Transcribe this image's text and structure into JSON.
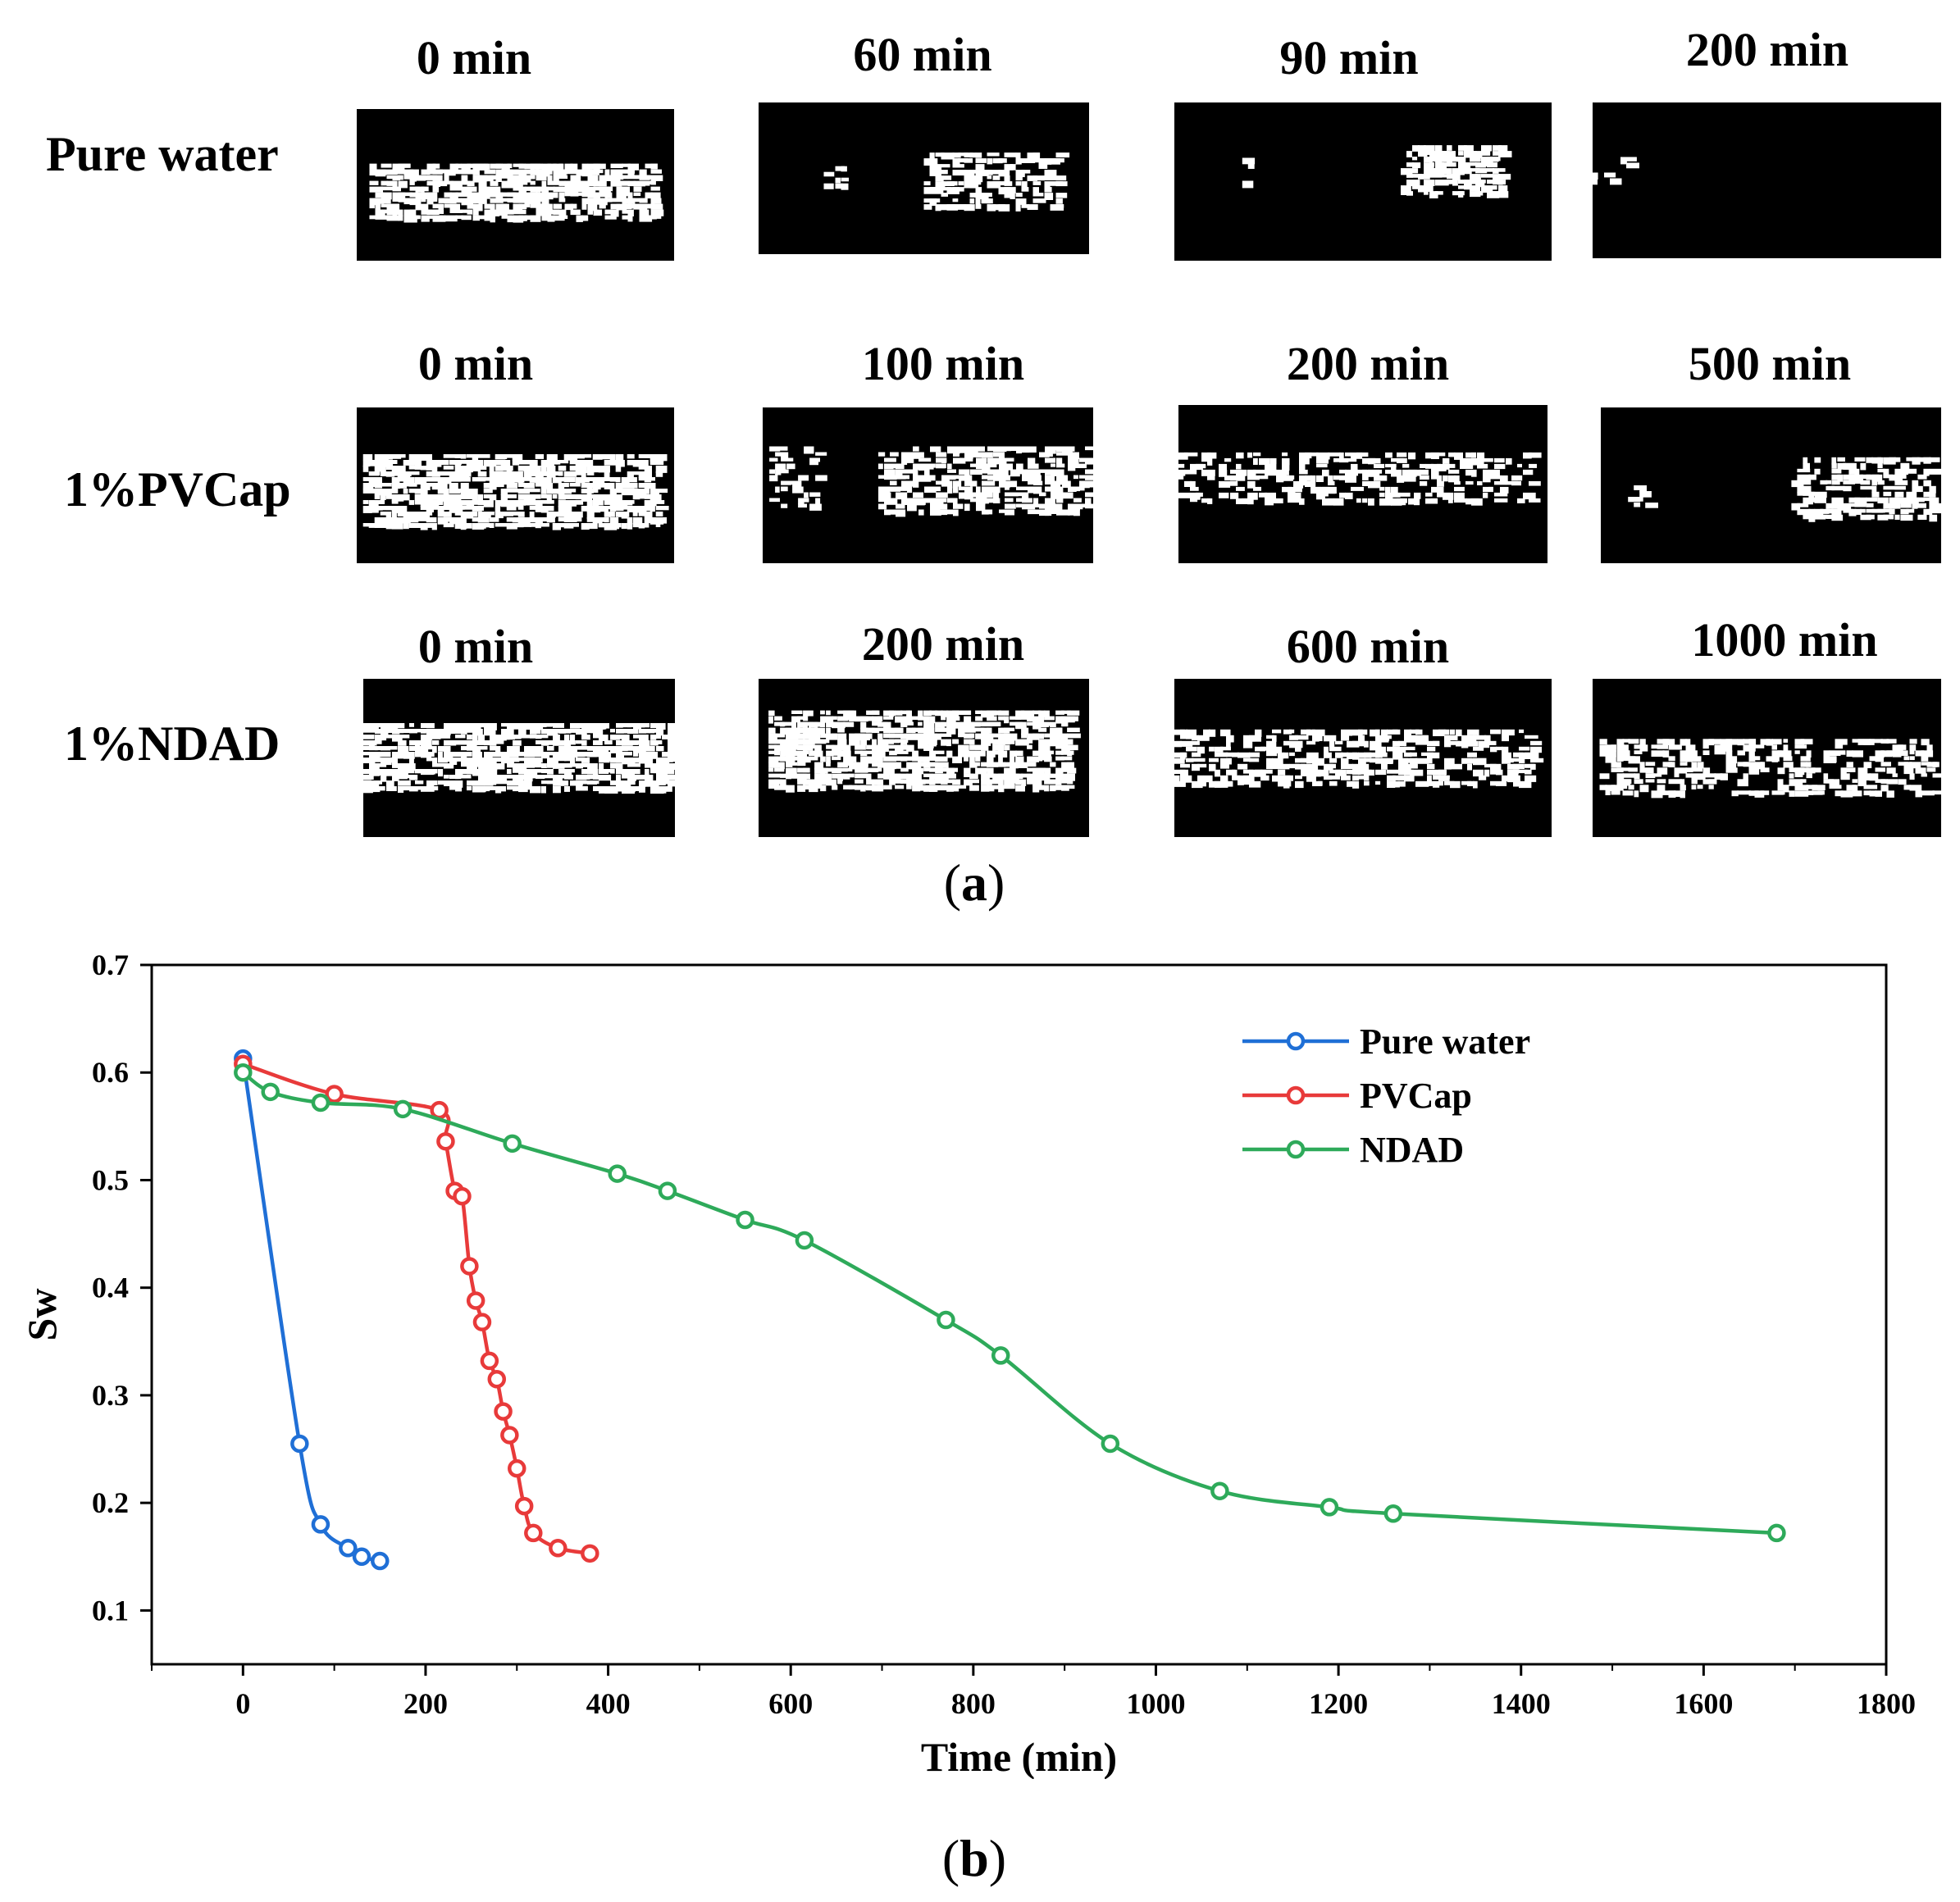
{
  "panel_a": {
    "caption_open": "(",
    "caption_letter": "a",
    "caption_close": ")",
    "rows": [
      {
        "label": "Pure water",
        "times": [
          "0 min",
          "60 min",
          "90 min",
          "200 min"
        ]
      },
      {
        "label": "1%PVCap",
        "times": [
          "0 min",
          "100 min",
          "200 min",
          "500 min"
        ]
      },
      {
        "label": "1%NDAD",
        "times": [
          "0 min",
          "200 min",
          "600 min",
          "1000 min"
        ]
      }
    ]
  },
  "panel_b": {
    "caption_open": "(",
    "caption_letter": "b",
    "caption_close": ")"
  },
  "chart_data": {
    "type": "line",
    "title": "",
    "xlabel": "Time (min)",
    "ylabel": "Sw",
    "xlim": [
      -100,
      1800
    ],
    "ylim": [
      0.05,
      0.7
    ],
    "xticks": [
      0,
      200,
      400,
      600,
      800,
      1000,
      1200,
      1400,
      1600,
      1800
    ],
    "yticks": [
      0.1,
      0.2,
      0.3,
      0.4,
      0.5,
      0.6,
      0.7
    ],
    "xtick_labels": [
      "0",
      "200",
      "400",
      "600",
      "800",
      "1000",
      "1200",
      "1400",
      "1600",
      "1800"
    ],
    "ytick_labels": [
      "0.1",
      "0.2",
      "0.3",
      "0.4",
      "0.5",
      "0.6",
      "0.7"
    ],
    "grid": false,
    "legend": "top-right",
    "series": [
      {
        "name": "Pure water",
        "color": "#1f6fd6",
        "x": [
          0,
          62,
          85,
          115,
          130,
          150
        ],
        "y": [
          0.613,
          0.255,
          0.18,
          0.158,
          0.15,
          0.146
        ]
      },
      {
        "name": "PVCap",
        "color": "#e83a3a",
        "x": [
          0,
          100,
          215,
          222,
          232,
          240,
          248,
          255,
          262,
          270,
          278,
          285,
          292,
          300,
          308,
          318,
          345,
          380
        ],
        "y": [
          0.608,
          0.58,
          0.565,
          0.536,
          0.49,
          0.485,
          0.42,
          0.388,
          0.368,
          0.332,
          0.315,
          0.285,
          0.263,
          0.232,
          0.197,
          0.172,
          0.158,
          0.153
        ]
      },
      {
        "name": "NDAD",
        "color": "#2eaa5a",
        "x": [
          0,
          30,
          85,
          175,
          295,
          410,
          465,
          550,
          615,
          770,
          830,
          950,
          1070,
          1190,
          1260,
          1680
        ],
        "y": [
          0.6,
          0.582,
          0.572,
          0.566,
          0.534,
          0.506,
          0.49,
          0.463,
          0.444,
          0.37,
          0.337,
          0.255,
          0.211,
          0.196,
          0.19,
          0.172
        ]
      }
    ]
  }
}
